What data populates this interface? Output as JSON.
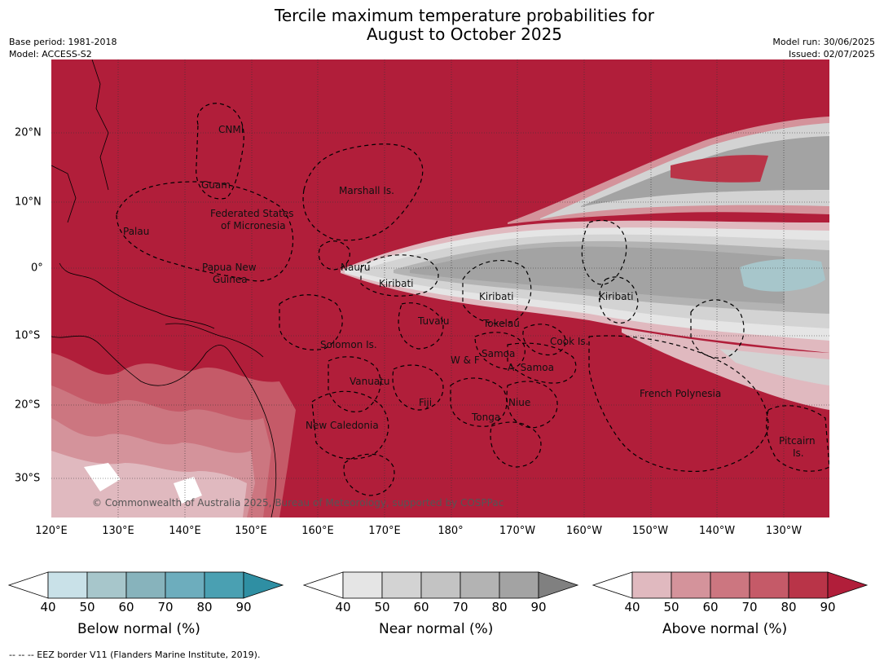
{
  "title_line1": "Tercile maximum temperature probabilities for",
  "title_line2": "August to October 2025",
  "meta_left": {
    "base_period": "Base period: 1981-2018",
    "model": "Model: ACCESS-S2"
  },
  "meta_right": {
    "model_run": "Model run: 30/06/2025",
    "issued": "Issued: 02/07/2025"
  },
  "lat_labels": [
    "20°N",
    "10°N",
    "0°",
    "10°S",
    "20°S",
    "30°S"
  ],
  "lon_labels": [
    "120°E",
    "130°E",
    "140°E",
    "150°E",
    "160°E",
    "170°E",
    "180°",
    "170°W",
    "160°W",
    "150°W",
    "140°W",
    "130°W"
  ],
  "regions": [
    "CNMI",
    "Guam",
    "Marshall Is.",
    "Federated States",
    "of Micronesia",
    "Palau",
    "Papua New",
    "Guinea",
    "Nauru",
    "Kiribati",
    "Kiribati",
    "Kiribati",
    "Tuvalu",
    "Tokelau",
    "Cook Is.",
    "Solomon Is.",
    "W & F",
    "Samoa",
    "A. Samoa",
    "Vanuatu",
    "Fiji",
    "Niue",
    "Tonga",
    "French Polynesia",
    "New Caledonia",
    "Pitcairn",
    "Is."
  ],
  "copyright": "© Commonwealth of Australia 2025, Bureau of Meteorology, supported by COSPPac",
  "colorbars": [
    {
      "title": "Below normal (%)",
      "ticks": [
        "40",
        "50",
        "60",
        "70",
        "80",
        "90"
      ],
      "colors": [
        "#ffffff",
        "#c9e1e8",
        "#a7c6cb",
        "#87b3bc",
        "#6dadbd",
        "#4aa0b2",
        "#2f8fa3"
      ]
    },
    {
      "title": "Near normal (%)",
      "ticks": [
        "40",
        "50",
        "60",
        "70",
        "80",
        "90"
      ],
      "colors": [
        "#ffffff",
        "#e5e5e5",
        "#d3d3d3",
        "#c3c3c3",
        "#b3b3b3",
        "#a3a3a3",
        "#808080"
      ]
    },
    {
      "title": "Above normal (%)",
      "ticks": [
        "40",
        "50",
        "60",
        "70",
        "80",
        "90"
      ],
      "colors": [
        "#ffffff",
        "#e0b9bf",
        "#d4939b",
        "#cc7680",
        "#c55a68",
        "#b93448",
        "#b11e3a"
      ]
    }
  ],
  "footnote": "--  --  -- EEZ border V11 (Flanders Marine Institute, 2019)."
}
